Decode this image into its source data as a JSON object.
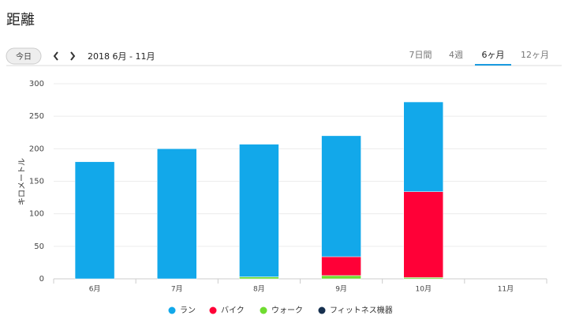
{
  "header": {
    "title": "距離",
    "today": "今日",
    "range": "2018 6月 - 11月",
    "tabs": [
      "7日間",
      "4週",
      "6ヶ月",
      "12ヶ月"
    ],
    "active_tab": 2
  },
  "chart_data": {
    "type": "stacked_bar",
    "y_label": "キロメートル",
    "categories": [
      "6月",
      "7月",
      "8月",
      "9月",
      "10月",
      "11月"
    ],
    "series": [
      {
        "name": "ラン",
        "color": "#12a8ea",
        "values": [
          180,
          200,
          204,
          186,
          138,
          0
        ]
      },
      {
        "name": "バイク",
        "color": "#ff0037",
        "values": [
          0,
          0,
          0,
          29,
          132,
          0
        ]
      },
      {
        "name": "ウォーク",
        "color": "#6fdc30",
        "values": [
          0,
          0,
          3,
          5,
          2,
          0
        ]
      },
      {
        "name": "フィットネス機器",
        "color": "#16304f",
        "values": [
          0,
          0,
          0,
          0,
          0,
          0
        ]
      }
    ],
    "ylim": [
      0,
      300
    ],
    "yticks": [
      0,
      50,
      100,
      150,
      200,
      250,
      300
    ],
    "grid": true
  }
}
